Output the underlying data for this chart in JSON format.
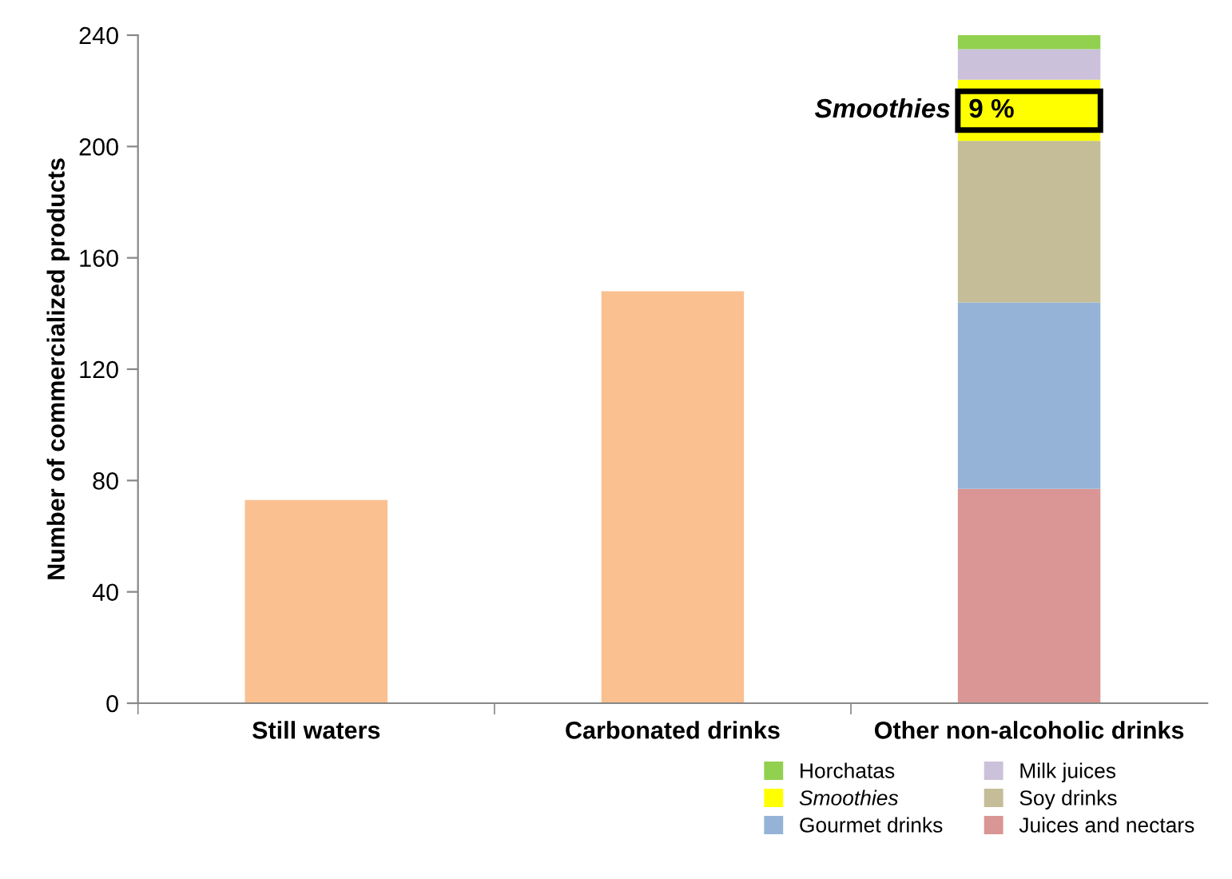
{
  "chart_data": {
    "type": "bar",
    "stacked": true,
    "ylabel": "Number of commercialized products",
    "categories": [
      "Still waters",
      "Carbonated drinks",
      "Other non-alcoholic drinks"
    ],
    "series": [
      {
        "color": "#fac090",
        "values": [
          73,
          148,
          null
        ]
      },
      {
        "name": "Juices and nectars",
        "color": "#d99694",
        "values": [
          null,
          null,
          77
        ]
      },
      {
        "name": "Gourmet drinks",
        "color": "#95b3d7",
        "values": [
          null,
          null,
          67
        ]
      },
      {
        "name": "Soy drinks",
        "color": "#c4bd97",
        "values": [
          null,
          null,
          58
        ]
      },
      {
        "name": "Smoothies",
        "color": "#ffff00",
        "values": [
          null,
          null,
          22
        ]
      },
      {
        "name": "Milk juices",
        "color": "#ccc1da",
        "values": [
          null,
          null,
          11
        ]
      },
      {
        "name": "Horchatas",
        "color": "#92d050",
        "values": [
          null,
          null,
          5
        ]
      }
    ],
    "ylim": [
      0,
      240
    ],
    "yticks": [
      0,
      40,
      80,
      120,
      160,
      200,
      240
    ],
    "grid": false,
    "legend": "bottom right",
    "annotations": [
      "Smoothies",
      "9 %"
    ]
  }
}
